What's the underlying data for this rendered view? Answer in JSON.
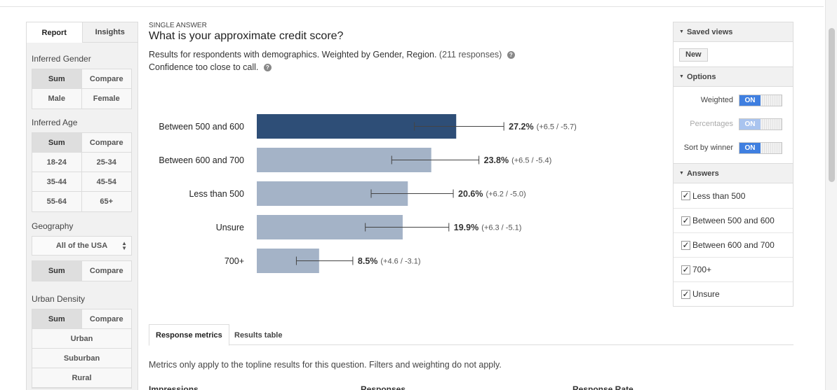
{
  "left_tabs": {
    "report": "Report",
    "insights": "Insights"
  },
  "gender": {
    "title": "Inferred Gender",
    "sum": "Sum",
    "compare": "Compare",
    "male": "Male",
    "female": "Female"
  },
  "age": {
    "title": "Inferred Age",
    "sum": "Sum",
    "compare": "Compare",
    "ranges": [
      "18-24",
      "25-34",
      "35-44",
      "45-54",
      "55-64",
      "65+"
    ]
  },
  "geography": {
    "title": "Geography",
    "selected": "All of the USA",
    "sum": "Sum",
    "compare": "Compare"
  },
  "urban": {
    "title": "Urban Density",
    "sum": "Sum",
    "compare": "Compare",
    "options": [
      "Urban",
      "Suburban",
      "Rural"
    ]
  },
  "question": {
    "type": "SINGLE ANSWER",
    "title": "What is your approximate credit score?",
    "subtitle": "Results for respondents with demographics. Weighted by Gender, Region.",
    "responses": "(211 responses)",
    "confidence": "Confidence too close to call."
  },
  "chart_data": {
    "type": "bar",
    "orientation": "horizontal",
    "categories": [
      "Between 500 and 600",
      "Between 600 and 700",
      "Less than 500",
      "Unsure",
      "700+"
    ],
    "values": [
      27.2,
      23.8,
      20.6,
      19.9,
      8.5
    ],
    "value_labels": [
      "27.2%",
      "23.8%",
      "20.6%",
      "19.9%",
      "8.5%"
    ],
    "error_labels": [
      "(+6.5 / -5.7)",
      "(+6.5 / -5.4)",
      "(+6.2 / -5.0)",
      "(+6.3 / -5.1)",
      "(+4.6 / -3.1)"
    ],
    "error_plus": [
      6.5,
      6.5,
      6.2,
      6.3,
      4.6
    ],
    "error_minus": [
      5.7,
      5.4,
      5.0,
      5.1,
      3.1
    ],
    "highlight_index": 0,
    "colors": {
      "highlight": "#2e4e77",
      "default": "#a4b3c7",
      "error": "#444444"
    }
  },
  "bottom_tabs": {
    "metrics": "Response metrics",
    "table": "Results table"
  },
  "metrics_note": "Metrics only apply to the topline results for this question. Filters and weighting do not apply.",
  "metric_headers": [
    "Impressions",
    "Responses",
    "Response Rate"
  ],
  "saved_views": {
    "title": "Saved views",
    "new": "New"
  },
  "options": {
    "title": "Options",
    "weighted": "Weighted",
    "percentages": "Percentages",
    "sort": "Sort by winner",
    "on": "ON"
  },
  "answers": {
    "title": "Answers",
    "items": [
      "Less than 500",
      "Between 500 and 600",
      "Between 600 and 700",
      "700+",
      "Unsure"
    ]
  }
}
